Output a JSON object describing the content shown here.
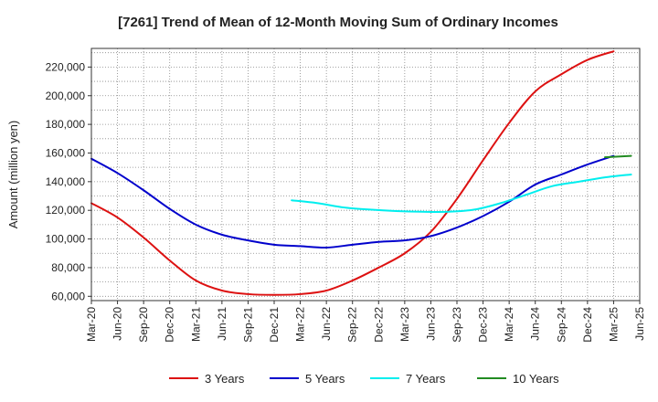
{
  "chart_data": {
    "type": "line",
    "title": "[7261]  Trend of Mean of 12-Month Moving Sum of Ordinary Incomes",
    "xlabel": "",
    "ylabel": "Amount (million yen)",
    "ylim": [
      57000,
      233000
    ],
    "yticks": [
      60000,
      80000,
      100000,
      120000,
      140000,
      160000,
      180000,
      200000,
      220000
    ],
    "ytick_labels": [
      "60,000",
      "80,000",
      "100,000",
      "120,000",
      "140,000",
      "160,000",
      "180,000",
      "200,000",
      "220,000"
    ],
    "xtick_labels": [
      "Mar-20",
      "Jun-20",
      "Sep-20",
      "Dec-20",
      "Mar-21",
      "Jun-21",
      "Sep-21",
      "Dec-21",
      "Mar-22",
      "Jun-22",
      "Sep-22",
      "Dec-22",
      "Mar-23",
      "Jun-23",
      "Sep-23",
      "Dec-23",
      "Mar-24",
      "Jun-24",
      "Sep-24",
      "Dec-24",
      "Mar-25",
      "Jun-25"
    ],
    "grid": true,
    "legend_position": "bottom",
    "series": [
      {
        "name": "3 Years",
        "color": "#dd1111",
        "start_index": 0,
        "values": [
          125000,
          115000,
          101000,
          85000,
          71000,
          64000,
          61500,
          61000,
          61500,
          64000,
          71000,
          80000,
          90000,
          105000,
          128000,
          155000,
          181000,
          203000,
          215000,
          225000,
          231000
        ]
      },
      {
        "name": "5 Years",
        "color": "#0000cc",
        "start_index": 0,
        "values": [
          156000,
          146000,
          134000,
          121000,
          110000,
          103000,
          99000,
          96000,
          95000,
          94000,
          96000,
          98000,
          99000,
          102000,
          108000,
          116000,
          126000,
          138000,
          145000,
          152000,
          158000
        ]
      },
      {
        "name": "7 Years",
        "color": "#00eeee",
        "start_index": 7.67,
        "values": [
          127000,
          125000,
          122000,
          120500,
          119500,
          119000,
          119000,
          120500,
          125000,
          131000,
          137000,
          140000,
          143000,
          145000
        ]
      },
      {
        "name": "10 Years",
        "color": "#228b22",
        "start_index": 19.67,
        "values": [
          157000,
          158000
        ]
      }
    ]
  }
}
